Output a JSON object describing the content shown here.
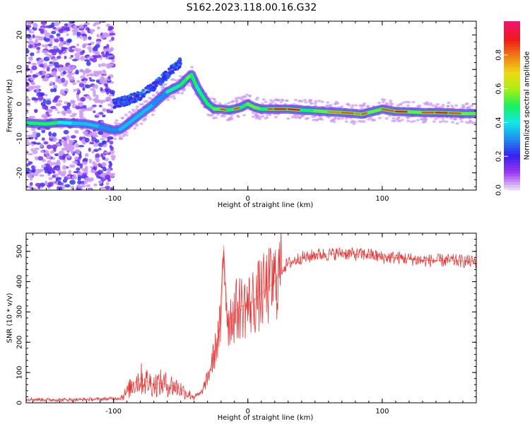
{
  "title": "S162.2023.118.00.16.G32",
  "chart_data": [
    {
      "type": "heatmap",
      "xlabel": "Height of straight line (km)",
      "ylabel": "Frequency (Hz)",
      "xlim": [
        -165,
        170
      ],
      "ylim": [
        -25,
        24
      ],
      "xticks": [
        -100,
        0,
        100
      ],
      "yticks": [
        -20,
        -10,
        0,
        10,
        20
      ],
      "grid": false,
      "colorbar": {
        "label": "Normalized spectral amplitude",
        "range": [
          0,
          1
        ],
        "ticks": [
          "0.0",
          "0.2",
          "0.4",
          "0.6",
          "0.8"
        ],
        "colormap": [
          "#e8d8f8",
          "#9a38f0",
          "#3a1ff0",
          "#1f8df0",
          "#13e7e7",
          "#18f05e",
          "#a8f015",
          "#f0d815",
          "#f07d15",
          "#f01a1a",
          "#f0146e"
        ]
      },
      "ridge": {
        "x": [
          -165,
          -150,
          -140,
          -130,
          -120,
          -110,
          -100,
          -95,
          -90,
          -80,
          -70,
          -60,
          -50,
          -45,
          -42,
          -38,
          -35,
          -30,
          -25,
          -20,
          -15,
          -10,
          -5,
          0,
          5,
          10,
          15,
          20,
          30,
          40,
          50,
          60,
          70,
          80,
          85,
          90,
          100,
          110,
          120,
          130,
          140,
          150,
          160,
          170
        ],
        "y": [
          -5.5,
          -5.8,
          -5.4,
          -5.6,
          -5.8,
          -6.6,
          -7.6,
          -7.4,
          -6,
          -3,
          0,
          3.5,
          5.5,
          7.5,
          8.5,
          5,
          3,
          0,
          -1.5,
          -1.5,
          -1.8,
          -1.5,
          -1,
          0,
          -1,
          -1.5,
          -1.5,
          -1.5,
          -1.5,
          -1.8,
          -2,
          -2.3,
          -2.5,
          -2.8,
          -3,
          -2.5,
          -1.5,
          -2.2,
          -2.3,
          -2.5,
          -2.5,
          -2.6,
          -2.8,
          -2.8
        ],
        "amplitude": [
          0.5,
          0.5,
          0.4,
          0.35,
          0.35,
          0.3,
          0.3,
          0.35,
          0.35,
          0.35,
          0.3,
          0.45,
          0.5,
          0.55,
          0.5,
          0.45,
          0.5,
          0.5,
          0.55,
          0.85,
          0.5,
          0.85,
          0.5,
          0.55,
          0.6,
          0.5,
          0.85,
          0.9,
          0.9,
          0.5,
          0.55,
          0.8,
          0.85,
          0.8,
          0.85,
          0.6,
          0.85,
          0.9,
          0.6,
          0.85,
          0.9,
          0.85,
          0.6,
          0.5
        ]
      },
      "secondary_ridge": {
        "x": [
          -100,
          -90,
          -80,
          -70,
          -60,
          -55,
          -50
        ],
        "y": [
          0,
          1,
          2.5,
          5,
          8.5,
          10.5,
          12
        ]
      },
      "noise_region": {
        "x": [
          -165,
          -100
        ],
        "y": [
          -25,
          24
        ]
      }
    },
    {
      "type": "line",
      "xlabel": "Height of straight line (km)",
      "ylabel": "SNR (10 * v/v)",
      "xlim": [
        -165,
        170
      ],
      "ylim": [
        0,
        560
      ],
      "xticks": [
        -100,
        0,
        100
      ],
      "yticks": [
        0,
        100,
        200,
        300,
        400,
        500
      ],
      "grid": false,
      "color": "#e53a3a",
      "x": [
        -165,
        -150,
        -130,
        -110,
        -95,
        -90,
        -85,
        -80,
        -75,
        -70,
        -65,
        -60,
        -55,
        -50,
        -45,
        -40,
        -35,
        -30,
        -25,
        -20,
        -18,
        -15,
        -10,
        -5,
        0,
        5,
        10,
        15,
        20,
        25,
        30,
        35,
        40,
        45,
        50,
        60,
        70,
        80,
        90,
        100,
        110,
        120,
        130,
        140,
        150,
        160,
        170
      ],
      "y": [
        12,
        10,
        10,
        12,
        15,
        35,
        65,
        80,
        70,
        60,
        65,
        60,
        55,
        45,
        30,
        20,
        30,
        80,
        160,
        260,
        520,
        270,
        300,
        320,
        320,
        340,
        360,
        380,
        400,
        440,
        460,
        470,
        480,
        480,
        490,
        490,
        495,
        490,
        490,
        480,
        480,
        475,
        470,
        470,
        470,
        468,
        465
      ]
    }
  ]
}
